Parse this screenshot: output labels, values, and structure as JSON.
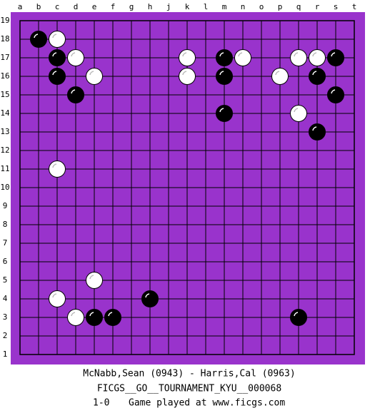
{
  "board": {
    "columns": [
      "a",
      "b",
      "c",
      "d",
      "e",
      "f",
      "g",
      "h",
      "j",
      "k",
      "l",
      "m",
      "n",
      "o",
      "p",
      "q",
      "r",
      "s",
      "t"
    ],
    "rows": [
      19,
      18,
      17,
      16,
      15,
      14,
      13,
      12,
      11,
      10,
      9,
      8,
      7,
      6,
      5,
      4,
      3,
      2,
      1
    ],
    "stones": [
      {
        "color": "black",
        "col": "b",
        "row": 18
      },
      {
        "color": "white",
        "col": "c",
        "row": 18
      },
      {
        "color": "black",
        "col": "c",
        "row": 17
      },
      {
        "color": "white",
        "col": "d",
        "row": 17
      },
      {
        "color": "black",
        "col": "c",
        "row": 16
      },
      {
        "color": "white",
        "col": "e",
        "row": 16
      },
      {
        "color": "black",
        "col": "d",
        "row": 15
      },
      {
        "color": "white",
        "col": "k",
        "row": 17
      },
      {
        "color": "white",
        "col": "k",
        "row": 16
      },
      {
        "color": "black",
        "col": "m",
        "row": 17
      },
      {
        "color": "black",
        "col": "m",
        "row": 16
      },
      {
        "color": "black",
        "col": "m",
        "row": 14
      },
      {
        "color": "white",
        "col": "n",
        "row": 17
      },
      {
        "color": "white",
        "col": "p",
        "row": 16
      },
      {
        "color": "white",
        "col": "q",
        "row": 17
      },
      {
        "color": "white",
        "col": "q",
        "row": 14
      },
      {
        "color": "white",
        "col": "r",
        "row": 17
      },
      {
        "color": "black",
        "col": "r",
        "row": 16
      },
      {
        "color": "black",
        "col": "r",
        "row": 13
      },
      {
        "color": "black",
        "col": "s",
        "row": 17
      },
      {
        "color": "black",
        "col": "s",
        "row": 15
      },
      {
        "color": "white",
        "col": "c",
        "row": 11
      },
      {
        "color": "white",
        "col": "e",
        "row": 5
      },
      {
        "color": "white",
        "col": "c",
        "row": 4
      },
      {
        "color": "black",
        "col": "h",
        "row": 4
      },
      {
        "color": "white",
        "col": "d",
        "row": 3
      },
      {
        "color": "black",
        "col": "e",
        "row": 3
      },
      {
        "color": "black",
        "col": "f",
        "row": 3
      },
      {
        "color": "black",
        "col": "q",
        "row": 3
      }
    ]
  },
  "footer": {
    "players": "McNabb,Sean (0943) - Harris,Cal (0963)",
    "tournament": "FICGS__GO__TOURNAMENT_KYU__000068",
    "result": "1-0",
    "site": "Game played at www.ficgs.com"
  }
}
